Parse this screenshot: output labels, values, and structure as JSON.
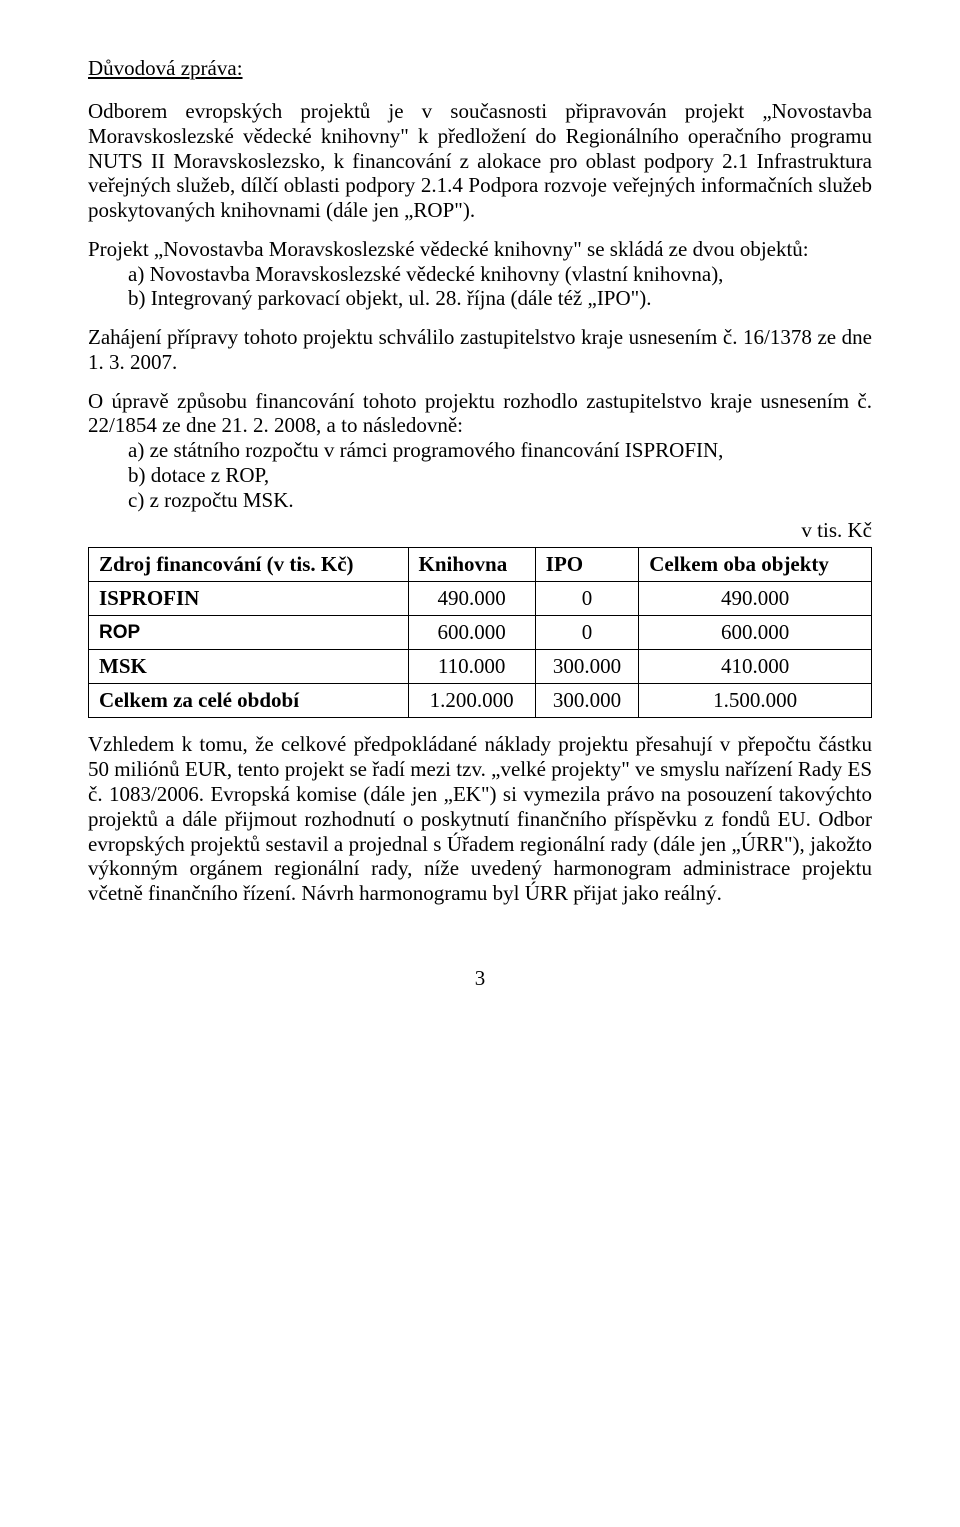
{
  "heading": "Důvodová zpráva:",
  "para1": "Odborem evropských projektů je v současnosti připravován projekt „Novostavba Moravskoslezské vědecké knihovny\" k předložení do Regionálního operačního programu NUTS II Moravskoslezsko, k financování z alokace pro oblast podpory 2.1 Infrastruktura veřejných služeb, dílčí oblasti podpory 2.1.4 Podpora rozvoje veřejných informačních služeb poskytovaných knihovnami (dále jen „ROP\").",
  "para2_lead": "Projekt „Novostavba Moravskoslezské vědecké knihovny\" se skládá ze dvou objektů:",
  "para2_items": [
    "a) Novostavba Moravskoslezské vědecké knihovny (vlastní knihovna),",
    "b) Integrovaný parkovací objekt, ul. 28. října (dále též „IPO\")."
  ],
  "para3": "Zahájení přípravy tohoto projektu schválilo zastupitelstvo kraje usnesením č. 16/1378 ze dne 1. 3. 2007.",
  "para4_lead": "O úpravě způsobu financování tohoto projektu rozhodlo zastupitelstvo kraje usnesením č. 22/1854 ze dne 21. 2. 2008, a to následovně:",
  "para4_items": [
    "a) ze státního rozpočtu v rámci programového financování ISPROFIN,",
    "b) dotace z ROP,",
    "c) z rozpočtu MSK."
  ],
  "table_unit": "v tis. Kč",
  "table": {
    "columns": [
      "Zdroj financování (v tis. Kč)",
      "Knihovna",
      "IPO",
      "Celkem oba objekty"
    ],
    "rows": [
      [
        "ISPROFIN",
        "490.000",
        "0",
        "490.000"
      ],
      [
        "ROP",
        "600.000",
        "0",
        "600.000"
      ],
      [
        "MSK",
        "110.000",
        "300.000",
        "410.000"
      ],
      [
        "Celkem za celé období",
        "1.200.000",
        "300.000",
        "1.500.000"
      ]
    ],
    "col_widths_pct": [
      30,
      24,
      22,
      24
    ]
  },
  "para5": "Vzhledem k tomu, že celkové předpokládané náklady projektu přesahují v přepočtu částku 50 miliónů EUR, tento projekt se řadí mezi tzv. „velké projekty\" ve smyslu nařízení Rady ES č. 1083/2006. Evropská komise (dále jen „EK\") si vymezila právo na posouzení takovýchto projektů a dále přijmout rozhodnutí o poskytnutí finančního příspěvku z fondů EU. Odbor evropských projektů sestavil a projednal s Úřadem regionální rady (dále jen „ÚRR\"), jakožto výkonným orgánem regionální rady, níže uvedený harmonogram administrace projektu včetně finančního řízení. Návrh harmonogramu byl ÚRR přijat jako reálný.",
  "page_number": "3"
}
